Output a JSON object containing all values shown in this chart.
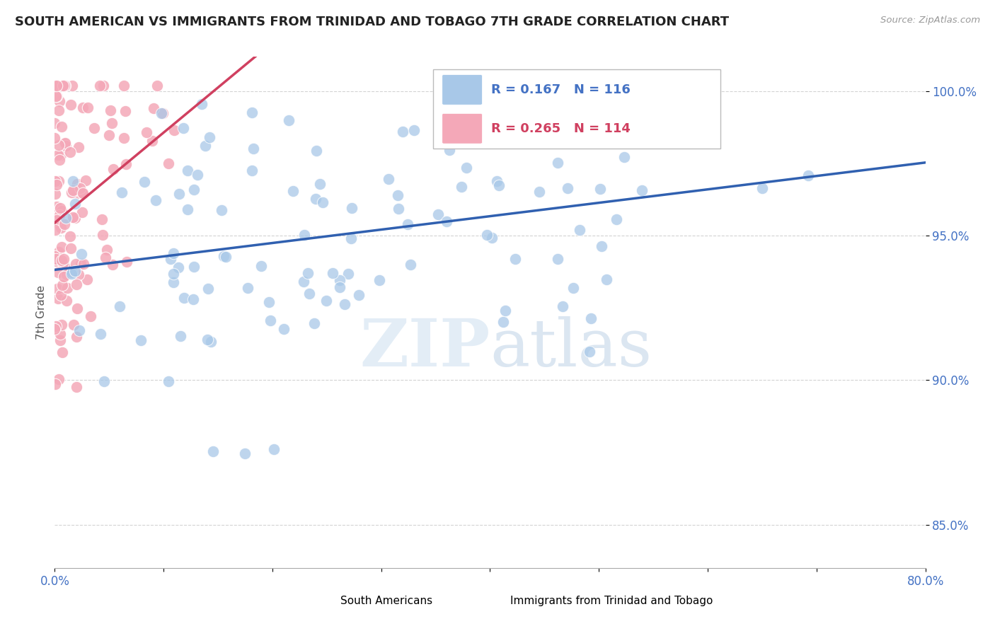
{
  "title": "SOUTH AMERICAN VS IMMIGRANTS FROM TRINIDAD AND TOBAGO 7TH GRADE CORRELATION CHART",
  "source": "Source: ZipAtlas.com",
  "ylabel": "7th Grade",
  "xlim": [
    0.0,
    0.8
  ],
  "ylim": [
    0.835,
    1.012
  ],
  "yticks": [
    0.85,
    0.9,
    0.95,
    1.0
  ],
  "ytick_labels": [
    "85.0%",
    "90.0%",
    "95.0%",
    "100.0%"
  ],
  "xticks": [
    0.0,
    0.1,
    0.2,
    0.3,
    0.4,
    0.5,
    0.6,
    0.7,
    0.8
  ],
  "xtick_labels": [
    "0.0%",
    "",
    "",
    "",
    "",
    "",
    "",
    "",
    "80.0%"
  ],
  "blue_R": 0.167,
  "blue_N": 116,
  "pink_R": 0.265,
  "pink_N": 114,
  "blue_color": "#a8c8e8",
  "pink_color": "#f4a8b8",
  "blue_line_color": "#3060b0",
  "pink_line_color": "#d04060",
  "legend_label_blue": "South Americans",
  "legend_label_pink": "Immigrants from Trinidad and Tobago",
  "watermark_zip": "ZIP",
  "watermark_atlas": "atlas",
  "background_color": "#ffffff",
  "grid_color": "#c8c8c8",
  "title_color": "#222222",
  "axis_label_color": "#4472c4",
  "title_fontsize": 13.0
}
